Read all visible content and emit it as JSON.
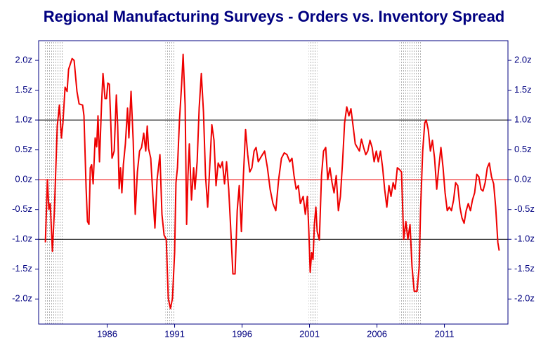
{
  "chart_data": {
    "type": "line",
    "title": "Regional Manufacturing Surveys - Orders vs. Inventory Spread",
    "color": "#ee0000",
    "x": [
      1981.42,
      1981.57,
      1981.68,
      1981.78,
      1981.94,
      1982.09,
      1982.3,
      1982.46,
      1982.61,
      1982.72,
      1982.88,
      1983.03,
      1983.14,
      1983.4,
      1983.55,
      1983.76,
      1983.92,
      1984.18,
      1984.28,
      1984.44,
      1984.54,
      1984.65,
      1984.75,
      1984.85,
      1984.96,
      1985.11,
      1985.22,
      1985.32,
      1985.43,
      1985.58,
      1985.69,
      1985.84,
      1985.95,
      1986.05,
      1986.16,
      1986.26,
      1986.36,
      1986.52,
      1986.68,
      1986.78,
      1986.89,
      1986.99,
      1987.09,
      1987.2,
      1987.35,
      1987.51,
      1987.61,
      1987.77,
      1987.93,
      1988.08,
      1988.24,
      1988.4,
      1988.55,
      1988.71,
      1988.86,
      1988.97,
      1989.07,
      1989.23,
      1989.39,
      1989.54,
      1989.7,
      1989.91,
      1990.06,
      1990.22,
      1990.38,
      1990.53,
      1990.69,
      1990.84,
      1991.0,
      1991.1,
      1991.21,
      1991.36,
      1991.52,
      1991.63,
      1991.78,
      1991.89,
      1991.99,
      1992.09,
      1992.25,
      1992.41,
      1992.51,
      1992.67,
      1992.82,
      1992.98,
      1993.14,
      1993.29,
      1993.45,
      1993.6,
      1993.76,
      1993.92,
      1994.07,
      1994.23,
      1994.39,
      1994.54,
      1994.7,
      1994.85,
      1995.01,
      1995.17,
      1995.32,
      1995.48,
      1995.64,
      1995.79,
      1995.95,
      1996.1,
      1996.26,
      1996.42,
      1996.57,
      1996.73,
      1996.89,
      1997.04,
      1997.2,
      1997.35,
      1997.51,
      1997.67,
      1997.88,
      1998.08,
      1998.29,
      1998.5,
      1998.71,
      1998.92,
      1999.13,
      1999.33,
      1999.54,
      1999.7,
      1999.85,
      2000.01,
      2000.17,
      2000.32,
      2000.53,
      2000.69,
      2000.84,
      2000.95,
      2001.05,
      2001.16,
      2001.26,
      2001.36,
      2001.47,
      2001.57,
      2001.73,
      2001.89,
      2002.04,
      2002.2,
      2002.35,
      2002.51,
      2002.67,
      2002.82,
      2002.98,
      2003.14,
      2003.29,
      2003.45,
      2003.6,
      2003.76,
      2003.92,
      2004.07,
      2004.23,
      2004.39,
      2004.54,
      2004.7,
      2004.85,
      2005.01,
      2005.17,
      2005.32,
      2005.48,
      2005.64,
      2005.79,
      2005.95,
      2006.1,
      2006.26,
      2006.42,
      2006.57,
      2006.73,
      2006.89,
      2007.04,
      2007.2,
      2007.35,
      2007.51,
      2007.67,
      2007.82,
      2007.98,
      2008.14,
      2008.29,
      2008.45,
      2008.6,
      2008.76,
      2008.97,
      2009.13,
      2009.23,
      2009.39,
      2009.54,
      2009.65,
      2009.8,
      2009.96,
      2010.11,
      2010.27,
      2010.43,
      2010.58,
      2010.74,
      2010.9,
      2011.05,
      2011.21,
      2011.36,
      2011.52,
      2011.68,
      2011.83,
      2011.99,
      2012.15,
      2012.3,
      2012.46,
      2012.61,
      2012.77,
      2012.93,
      2013.08,
      2013.24,
      2013.4,
      2013.55,
      2013.71,
      2013.86,
      2014.02,
      2014.18,
      2014.33,
      2014.49,
      2014.65,
      2014.8,
      2014.96,
      2015.06
    ],
    "values": [
      -1.05,
      0.0,
      -0.5,
      -0.4,
      -1.2,
      -0.5,
      0.9,
      1.25,
      0.7,
      0.95,
      1.55,
      1.48,
      1.85,
      2.03,
      2.0,
      1.48,
      1.27,
      1.25,
      1.07,
      -0.15,
      -0.7,
      -0.75,
      0.2,
      0.25,
      -0.07,
      0.7,
      0.55,
      1.07,
      0.3,
      1.25,
      1.78,
      1.36,
      1.36,
      1.62,
      1.6,
      1.0,
      0.36,
      0.48,
      1.42,
      0.9,
      -0.15,
      0.2,
      -0.22,
      0.25,
      0.6,
      1.2,
      0.7,
      1.48,
      0.65,
      -0.58,
      0.13,
      0.48,
      0.54,
      0.78,
      0.48,
      0.9,
      0.52,
      0.36,
      -0.28,
      -0.81,
      0.0,
      0.42,
      -0.58,
      -0.93,
      -1.0,
      -1.99,
      -2.16,
      -1.99,
      -1.22,
      -0.05,
      0.2,
      1.0,
      1.6,
      2.1,
      1.25,
      -0.75,
      0.07,
      0.6,
      -0.34,
      0.2,
      -0.16,
      0.3,
      1.2,
      1.78,
      1.13,
      0.07,
      -0.46,
      0.2,
      0.92,
      0.66,
      -0.1,
      0.28,
      0.2,
      0.3,
      -0.07,
      0.3,
      -0.16,
      -0.87,
      -1.58,
      -1.58,
      -0.52,
      -0.1,
      -0.87,
      0.07,
      0.84,
      0.42,
      0.13,
      0.2,
      0.48,
      0.54,
      0.3,
      0.36,
      0.42,
      0.48,
      0.2,
      -0.16,
      -0.4,
      -0.52,
      0.0,
      0.36,
      0.45,
      0.42,
      0.3,
      0.36,
      0.07,
      -0.16,
      -0.1,
      -0.4,
      -0.28,
      -0.58,
      -0.28,
      -0.87,
      -1.55,
      -1.22,
      -1.34,
      -0.75,
      -0.46,
      -0.87,
      -1.01,
      0.07,
      0.48,
      0.54,
      0.0,
      0.2,
      -0.05,
      -0.22,
      0.07,
      -0.52,
      -0.28,
      0.3,
      0.95,
      1.22,
      1.07,
      1.19,
      0.9,
      0.6,
      0.54,
      0.48,
      0.68,
      0.54,
      0.42,
      0.48,
      0.66,
      0.54,
      0.3,
      0.48,
      0.3,
      0.48,
      0.2,
      -0.16,
      -0.46,
      -0.1,
      -0.28,
      -0.05,
      -0.16,
      0.2,
      0.17,
      0.13,
      -1.0,
      -0.7,
      -1.0,
      -0.75,
      -1.46,
      -1.87,
      -1.87,
      -1.46,
      -0.52,
      0.48,
      0.95,
      1.0,
      0.84,
      0.48,
      0.66,
      0.36,
      -0.16,
      0.2,
      0.54,
      0.2,
      -0.22,
      -0.52,
      -0.46,
      -0.52,
      -0.34,
      -0.05,
      -0.1,
      -0.46,
      -0.64,
      -0.73,
      -0.52,
      -0.4,
      -0.52,
      -0.34,
      -0.22,
      0.09,
      0.05,
      -0.16,
      -0.19,
      -0.05,
      0.2,
      0.28,
      0.05,
      -0.07,
      -0.46,
      -1.05,
      -1.19
    ],
    "xlim": [
      1980.92,
      2015.71
    ],
    "xticks": [
      1986,
      1991,
      1996,
      2001,
      2006,
      2011
    ],
    "ylim": [
      -2.42,
      2.33
    ],
    "yticks": [
      {
        "value": 2,
        "label": "2.0z"
      },
      {
        "value": 1.5,
        "label": "1.5z"
      },
      {
        "value": 1,
        "label": "1.0z"
      },
      {
        "value": 0.5,
        "label": "0.5z"
      },
      {
        "value": 0,
        "label": "0.0z"
      },
      {
        "value": -0.5,
        "label": "-0.5z"
      },
      {
        "value": -1,
        "label": "-1.0z"
      },
      {
        "value": -1.5,
        "label": "-1.5z"
      },
      {
        "value": -2,
        "label": "-2.0z"
      }
    ],
    "hlines": [
      {
        "value": 1,
        "color": "#000000"
      },
      {
        "value": 0,
        "color": "#ee0000"
      },
      {
        "value": -1,
        "color": "#000000"
      }
    ],
    "recessions": [
      [
        1981.31,
        1982.72
      ],
      [
        1990.32,
        1991.0
      ],
      [
        2000.95,
        2001.57
      ],
      [
        2007.67,
        2009.28
      ]
    ],
    "recession_color": "#b0b0b0",
    "axis_color": "#000080"
  }
}
